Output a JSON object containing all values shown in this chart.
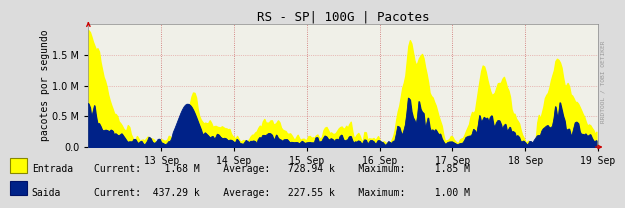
{
  "title": "RS - SP| 100G | Pacotes",
  "ylabel": "pacotes por segundo",
  "watermark": "RRDTOOL / TOBI OETIKER",
  "background_color": "#dcdcdc",
  "plot_background_color": "#f0f0e8",
  "grid_color": "#e08080",
  "ylim": [
    0,
    2000000
  ],
  "yticks": [
    0,
    500000,
    1000000,
    1500000
  ],
  "x_days": [
    "13 Sep",
    "14 Sep",
    "15 Sep",
    "16 Sep",
    "17 Sep",
    "18 Sep",
    "19 Sep"
  ],
  "entrada_color": "#ffff00",
  "saida_color": "#002288",
  "arrow_color": "#cc0000",
  "num_points": 336,
  "title_fontsize": 9,
  "tick_fontsize": 7,
  "ylabel_fontsize": 7
}
